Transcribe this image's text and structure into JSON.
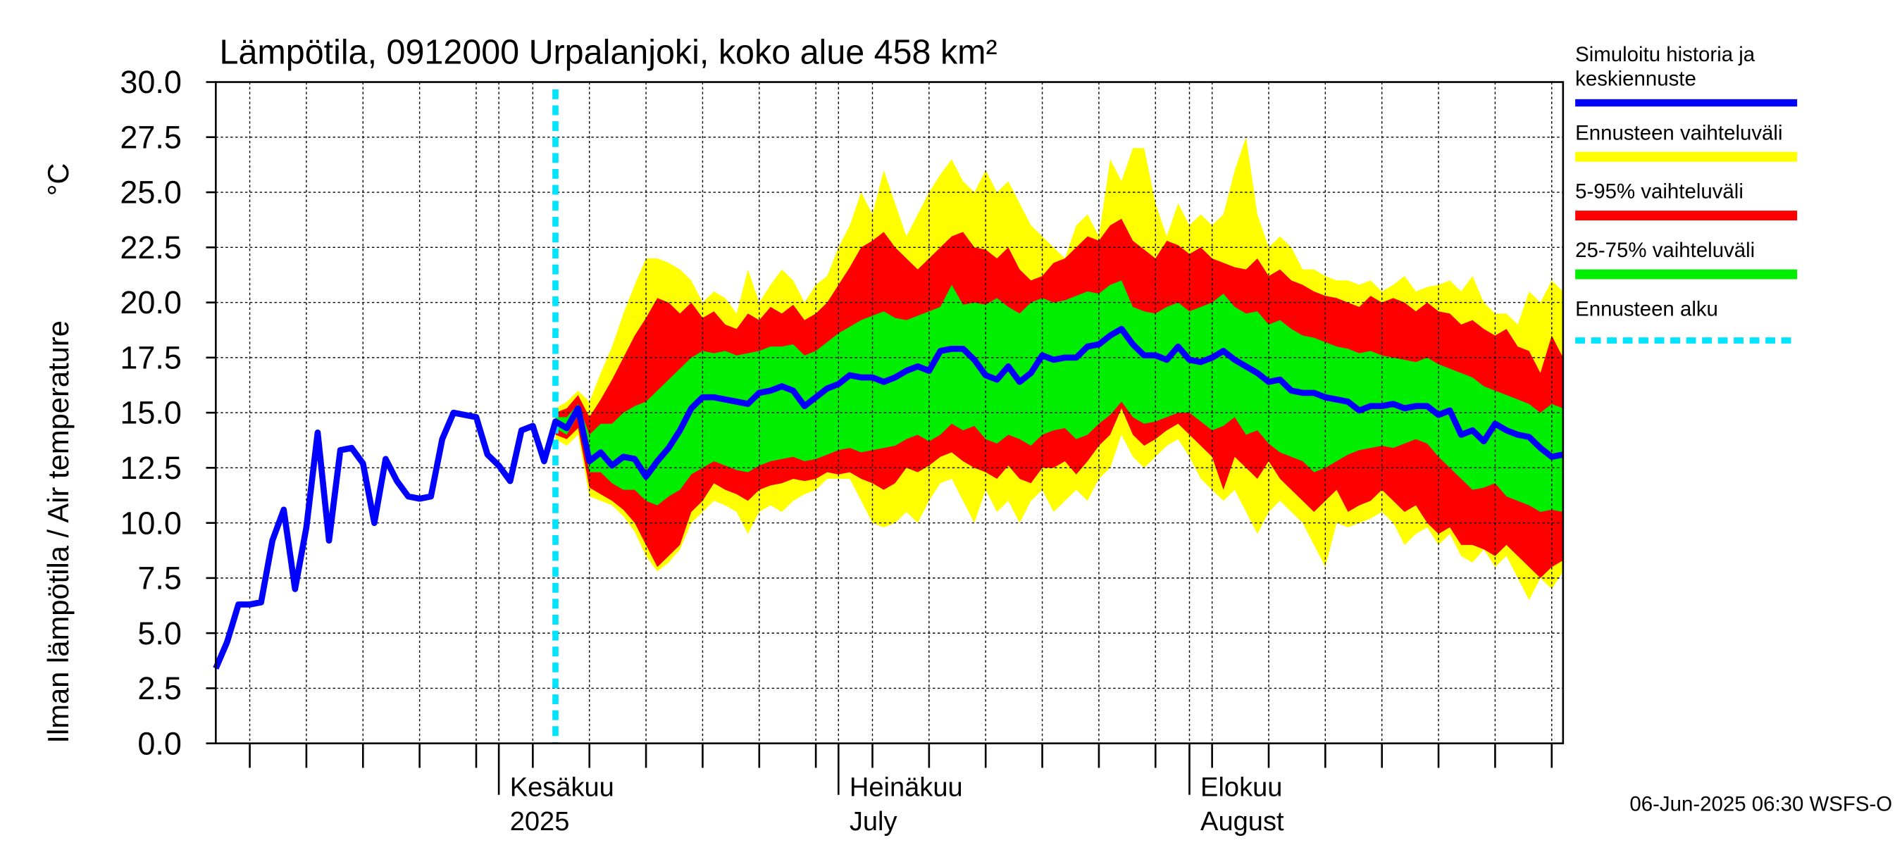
{
  "chart_data": {
    "type": "line",
    "title": "Lämpötila, 0912000 Urpalanjoki, koko alue 458 km²",
    "y_label": "Ilman lämpötila / Air temperature",
    "y_unit": "°C",
    "footer": "06-Jun-2025 06:30 WSFS-O",
    "ylim": [
      0,
      30
    ],
    "yticks": [
      {
        "value": 0,
        "label": "0.0"
      },
      {
        "value": 2.5,
        "label": "2.5"
      },
      {
        "value": 5,
        "label": "5.0"
      },
      {
        "value": 7.5,
        "label": "7.5"
      },
      {
        "value": 10,
        "label": "10.0"
      },
      {
        "value": 12.5,
        "label": "12.5"
      },
      {
        "value": 15,
        "label": "15.0"
      },
      {
        "value": 17.5,
        "label": "17.5"
      },
      {
        "value": 20,
        "label": "20.0"
      },
      {
        "value": 22.5,
        "label": "22.5"
      },
      {
        "value": 25,
        "label": "25.0"
      },
      {
        "value": 27.5,
        "label": "27.5"
      },
      {
        "value": 30,
        "label": "30.0"
      }
    ],
    "grid": true,
    "categories": [
      null,
      null,
      null,
      null,
      null,
      null,
      null,
      null,
      null,
      null,
      null,
      null,
      null,
      null,
      null,
      null,
      null,
      null,
      null,
      null,
      null,
      null,
      null,
      null,
      null,
      [
        "Kesäkuu",
        "2025"
      ],
      null,
      null,
      null,
      null,
      null,
      null,
      null,
      null,
      null,
      null,
      null,
      null,
      null,
      null,
      null,
      null,
      null,
      null,
      null,
      null,
      null,
      null,
      null,
      null,
      null,
      null,
      null,
      null,
      null,
      [
        "Heinäkuu",
        "July"
      ],
      null,
      null,
      null,
      null,
      null,
      null,
      null,
      null,
      null,
      null,
      null,
      null,
      null,
      null,
      null,
      null,
      null,
      null,
      null,
      null,
      null,
      null,
      null,
      null,
      null,
      null,
      null,
      null,
      null,
      null,
      [
        "Elokuu",
        "August"
      ],
      null,
      null,
      null,
      null,
      null,
      null,
      null,
      null,
      null,
      null,
      null,
      null,
      null,
      null,
      null,
      null,
      null,
      null,
      null,
      null,
      null,
      null,
      null,
      null,
      null,
      null,
      null,
      null,
      null,
      null,
      null,
      null,
      null
    ],
    "bands": [
      {
        "name": "Ennusteen vaihteluväli",
        "color": "#ffff00",
        "upper": [
          null,
          null,
          null,
          null,
          null,
          null,
          null,
          null,
          null,
          null,
          null,
          null,
          null,
          null,
          null,
          null,
          null,
          null,
          null,
          null,
          null,
          null,
          null,
          null,
          null,
          null,
          null,
          null,
          null,
          null,
          15.2,
          15.5,
          16.0,
          15.5,
          16.8,
          18.0,
          19.5,
          20.8,
          22.0,
          22.0,
          21.8,
          21.5,
          21.0,
          20.0,
          20.5,
          20.2,
          19.5,
          21.5,
          20.0,
          20.8,
          21.5,
          21.0,
          20.0,
          20.8,
          21.2,
          22.5,
          23.5,
          25.0,
          24.0,
          26.0,
          24.5,
          23.0,
          24.0,
          25.0,
          25.8,
          26.5,
          25.5,
          25.0,
          26.0,
          25.0,
          25.5,
          24.5,
          23.5,
          23.0,
          22.5,
          22.0,
          23.5,
          24.0,
          23.0,
          26.5,
          25.5,
          27.0,
          27.0,
          24.5,
          23.0,
          24.5,
          23.5,
          24.0,
          23.5,
          24.0,
          26.0,
          27.5,
          24.0,
          22.5,
          23.0,
          22.5,
          21.5,
          21.5,
          21.2,
          21.0,
          21.0,
          20.8,
          21.0,
          20.5,
          20.8,
          21.2,
          20.5,
          20.7,
          20.8,
          21.0,
          20.5,
          21.2,
          20.0,
          19.5,
          19.5,
          19.0,
          20.5,
          20.0,
          21.0,
          20.5
        ],
        "lower": [
          null,
          null,
          null,
          null,
          null,
          null,
          null,
          null,
          null,
          null,
          null,
          null,
          null,
          null,
          null,
          null,
          null,
          null,
          null,
          null,
          null,
          null,
          null,
          null,
          null,
          null,
          null,
          null,
          null,
          null,
          13.8,
          13.5,
          14.0,
          11.2,
          11.0,
          10.8,
          10.3,
          9.6,
          8.5,
          7.8,
          8.2,
          8.8,
          10.0,
          10.5,
          11.0,
          10.8,
          10.5,
          9.5,
          10.5,
          10.8,
          10.5,
          11.0,
          11.3,
          11.5,
          12.0,
          12.0,
          12.0,
          11.0,
          10.0,
          9.8,
          10.0,
          10.5,
          10.0,
          11.0,
          11.8,
          12.0,
          11.0,
          10.0,
          11.5,
          10.5,
          11.0,
          10.0,
          11.0,
          11.5,
          10.5,
          11.0,
          11.5,
          11.0,
          12.0,
          12.5,
          14.0,
          13.0,
          12.5,
          13.0,
          13.5,
          13.8,
          13.0,
          12.0,
          11.5,
          11.0,
          11.5,
          10.5,
          9.5,
          10.5,
          11.0,
          10.5,
          10.0,
          9.0,
          8.0,
          10.0,
          9.8,
          10.0,
          10.2,
          10.5,
          10.0,
          9.0,
          9.5,
          9.8,
          9.0,
          9.5,
          8.5,
          8.2,
          8.8,
          8.0,
          8.5,
          7.5,
          6.5,
          7.5,
          7.0,
          7.8
        ]
      },
      {
        "name": "5-95% vaihteluväli",
        "color": "#ff0000",
        "upper": [
          null,
          null,
          null,
          null,
          null,
          null,
          null,
          null,
          null,
          null,
          null,
          null,
          null,
          null,
          null,
          null,
          null,
          null,
          null,
          null,
          null,
          null,
          null,
          null,
          null,
          null,
          null,
          null,
          null,
          null,
          15.0,
          15.2,
          15.8,
          14.8,
          15.6,
          16.5,
          17.5,
          18.5,
          19.3,
          20.2,
          20.0,
          19.5,
          20.0,
          19.3,
          19.6,
          19.0,
          18.8,
          19.5,
          19.2,
          19.8,
          19.5,
          19.9,
          19.2,
          19.5,
          20.0,
          20.8,
          21.6,
          22.5,
          22.8,
          23.2,
          22.5,
          22.0,
          21.5,
          22.0,
          22.5,
          23.0,
          23.2,
          22.5,
          22.4,
          22.0,
          22.5,
          21.5,
          21.0,
          21.2,
          21.8,
          22.0,
          22.5,
          23.0,
          22.8,
          23.5,
          23.8,
          22.8,
          22.4,
          22.0,
          22.8,
          22.6,
          22.2,
          22.5,
          22.0,
          21.8,
          21.6,
          21.5,
          22.0,
          21.2,
          21.5,
          21.0,
          20.8,
          20.5,
          20.3,
          20.2,
          20.0,
          19.8,
          20.3,
          20.0,
          20.2,
          20.0,
          19.6,
          20.0,
          19.6,
          19.5,
          19.0,
          19.2,
          18.8,
          18.5,
          18.8,
          18.0,
          17.8,
          16.8,
          18.5,
          17.5
        ],
        "lower": [
          null,
          null,
          null,
          null,
          null,
          null,
          null,
          null,
          null,
          null,
          null,
          null,
          null,
          null,
          null,
          null,
          null,
          null,
          null,
          null,
          null,
          null,
          null,
          null,
          null,
          null,
          null,
          null,
          null,
          null,
          14.0,
          13.8,
          14.3,
          11.6,
          11.3,
          11.0,
          10.6,
          10.0,
          9.0,
          8.0,
          8.5,
          9.0,
          10.5,
          11.0,
          11.8,
          11.5,
          11.3,
          11.0,
          11.5,
          11.7,
          11.8,
          12.0,
          11.9,
          12.0,
          12.3,
          12.2,
          12.3,
          12.0,
          11.8,
          11.5,
          11.8,
          12.5,
          12.3,
          12.6,
          13.0,
          13.2,
          12.8,
          12.5,
          12.3,
          12.0,
          12.6,
          12.0,
          11.8,
          12.5,
          12.5,
          12.8,
          12.2,
          12.8,
          13.5,
          14.0,
          15.2,
          14.0,
          13.5,
          13.8,
          14.2,
          14.5,
          14.0,
          13.5,
          13.0,
          11.5,
          13.0,
          12.5,
          12.0,
          12.8,
          12.0,
          11.5,
          11.0,
          10.5,
          11.0,
          11.5,
          10.5,
          10.8,
          11.0,
          11.5,
          11.0,
          10.5,
          10.8,
          10.0,
          9.5,
          9.8,
          9.0,
          9.0,
          8.8,
          8.5,
          9.0,
          8.5,
          8.0,
          7.5,
          8.0,
          8.3
        ]
      },
      {
        "name": "25-75% vaihteluväli",
        "color": "#00ee00",
        "upper": [
          null,
          null,
          null,
          null,
          null,
          null,
          null,
          null,
          null,
          null,
          null,
          null,
          null,
          null,
          null,
          null,
          null,
          null,
          null,
          null,
          null,
          null,
          null,
          null,
          null,
          null,
          null,
          null,
          null,
          null,
          14.8,
          14.8,
          15.4,
          14.0,
          14.5,
          14.5,
          15.0,
          15.3,
          15.5,
          16.0,
          16.5,
          17.0,
          17.5,
          17.8,
          17.7,
          17.8,
          17.6,
          17.7,
          17.8,
          18.0,
          18.0,
          18.1,
          17.6,
          17.8,
          18.2,
          18.6,
          18.9,
          19.2,
          19.4,
          19.6,
          19.3,
          19.2,
          19.4,
          19.6,
          19.8,
          20.8,
          19.9,
          20.0,
          19.9,
          20.2,
          19.8,
          19.5,
          20.0,
          20.2,
          20.0,
          20.1,
          20.3,
          20.5,
          20.4,
          20.8,
          21.0,
          19.8,
          19.6,
          19.5,
          19.8,
          20.0,
          19.6,
          19.8,
          20.0,
          20.4,
          19.8,
          19.5,
          19.6,
          19.0,
          19.2,
          18.8,
          18.5,
          18.4,
          18.2,
          18.0,
          17.9,
          17.7,
          17.8,
          17.6,
          17.5,
          17.4,
          17.3,
          17.5,
          17.2,
          17.0,
          16.8,
          16.6,
          16.2,
          16.0,
          15.8,
          15.6,
          15.4,
          15.0,
          15.4,
          15.2
        ],
        "lower": [
          null,
          null,
          null,
          null,
          null,
          null,
          null,
          null,
          null,
          null,
          null,
          null,
          null,
          null,
          null,
          null,
          null,
          null,
          null,
          null,
          null,
          null,
          null,
          null,
          null,
          null,
          null,
          null,
          null,
          null,
          14.3,
          14.0,
          14.9,
          12.3,
          12.3,
          11.8,
          11.5,
          11.5,
          11.0,
          10.8,
          11.2,
          11.5,
          12.2,
          12.5,
          12.8,
          12.6,
          12.4,
          12.3,
          12.6,
          12.8,
          12.9,
          13.0,
          12.8,
          12.9,
          13.1,
          13.3,
          13.4,
          13.2,
          13.3,
          13.4,
          13.5,
          13.8,
          14.0,
          13.7,
          14.0,
          14.5,
          14.2,
          14.4,
          13.8,
          13.6,
          14.0,
          13.8,
          13.5,
          14.0,
          14.2,
          14.3,
          13.8,
          14.0,
          14.5,
          14.9,
          15.5,
          14.8,
          14.5,
          14.6,
          14.8,
          15.0,
          15.0,
          14.6,
          14.2,
          14.4,
          14.8,
          14.0,
          14.2,
          13.6,
          13.2,
          13.0,
          12.8,
          12.3,
          12.5,
          12.8,
          13.1,
          13.3,
          13.4,
          13.5,
          13.4,
          13.6,
          13.8,
          13.6,
          13.0,
          12.5,
          12.0,
          11.5,
          11.6,
          11.8,
          11.2,
          11.0,
          10.8,
          10.5,
          10.6,
          10.5
        ]
      }
    ],
    "series": [
      {
        "name": [
          "Simuloitu historia ja",
          "keskiennuste"
        ],
        "color": "#0000ff",
        "values": [
          3.4,
          4.6,
          6.3,
          6.3,
          6.4,
          9.2,
          10.6,
          7.0,
          9.8,
          14.1,
          9.2,
          13.3,
          13.4,
          12.7,
          10.0,
          12.9,
          11.9,
          11.2,
          11.1,
          11.2,
          13.8,
          15.0,
          14.9,
          14.8,
          13.1,
          12.6,
          11.9,
          14.2,
          14.4,
          12.8,
          14.6,
          14.3,
          15.2,
          12.8,
          13.2,
          12.6,
          13.0,
          12.9,
          12.1,
          12.8,
          13.4,
          14.2,
          15.2,
          15.7,
          15.7,
          15.6,
          15.5,
          15.4,
          15.9,
          16.0,
          16.2,
          16.0,
          15.3,
          15.7,
          16.1,
          16.3,
          16.7,
          16.6,
          16.6,
          16.4,
          16.6,
          16.9,
          17.1,
          16.9,
          17.8,
          17.9,
          17.9,
          17.4,
          16.7,
          16.5,
          17.1,
          16.4,
          16.8,
          17.6,
          17.4,
          17.5,
          17.5,
          18.0,
          18.1,
          18.5,
          18.8,
          18.1,
          17.6,
          17.6,
          17.4,
          18.0,
          17.4,
          17.3,
          17.5,
          17.8,
          17.4,
          17.1,
          16.8,
          16.4,
          16.5,
          16.0,
          15.9,
          15.9,
          15.7,
          15.6,
          15.5,
          15.1,
          15.3,
          15.3,
          15.4,
          15.2,
          15.3,
          15.3,
          14.9,
          15.1,
          14.0,
          14.2,
          13.7,
          14.5,
          14.2,
          14.0,
          13.9,
          13.4,
          13.0,
          13.1
        ]
      }
    ],
    "forecast_start": {
      "name": "Ennusteen alku",
      "color": "#00e5ff"
    }
  }
}
